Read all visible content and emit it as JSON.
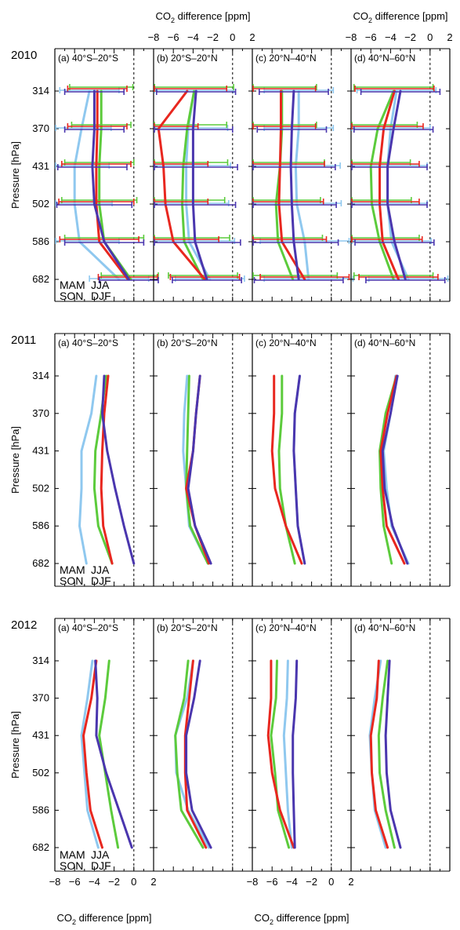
{
  "figure": {
    "top_xlabel_main": "CO",
    "top_xlabel_sub": "2",
    "top_xlabel_rest": " difference [ppm]",
    "bottom_xlabel_main": "CO",
    "bottom_xlabel_sub": "2",
    "bottom_xlabel_rest": " difference [ppm]",
    "ylabel": "Pressure [hPa]",
    "xticks": [
      "−8",
      "−6",
      "−4",
      "−2",
      "0",
      "2"
    ],
    "yticks": [
      "314",
      "370",
      "431",
      "502",
      "586",
      "682"
    ],
    "panel_titles": [
      "(a) 40°S–20°S",
      "(b) 20°S–20°N",
      "(c) 20°N–40°N",
      "(d) 40°N–60°N"
    ],
    "legend": {
      "mam": "MAM",
      "jja": "JJA",
      "son": "SON",
      "djf": "DJF"
    },
    "colors": {
      "MAM": "#5ccb3c",
      "JJA": "#e8271f",
      "SON": "#8fc8ef",
      "DJF": "#4a36ae"
    }
  },
  "chart_data": {
    "type": "line",
    "orientation": "vertical-profile",
    "xlim": [
      -8,
      2
    ],
    "x_unit": "CO2 difference [ppm]",
    "y_levels_hPa": [
      314,
      370,
      431,
      502,
      586,
      682
    ],
    "zero_line": "dashed",
    "years": [
      {
        "year": "2010",
        "error_bars": true,
        "panels": [
          {
            "title": "(a) 40°S–20°S",
            "series": [
              {
                "name": "MAM",
                "x": [
                  -3.3,
                  -3.3,
                  -3.5,
                  -3.5,
                  -3.0,
                  -0.3
                ],
                "xerr": [
                  3.2,
                  3.0,
                  3.5,
                  3.8,
                  4.0,
                  3.0
                ]
              },
              {
                "name": "JJA",
                "x": [
                  -3.7,
                  -3.7,
                  -3.8,
                  -3.8,
                  -3.5,
                  -0.6
                ],
                "xerr": [
                  3.0,
                  3.0,
                  3.5,
                  3.8,
                  4.0,
                  3.0
                ]
              },
              {
                "name": "SON",
                "x": [
                  -4.5,
                  -5.3,
                  -6.0,
                  -6.0,
                  -5.5,
                  -1.5
                ],
                "xerr": [
                  3.0,
                  3.0,
                  3.5,
                  3.8,
                  4.0,
                  3.0
                ]
              },
              {
                "name": "DJF",
                "x": [
                  -4.0,
                  -4.0,
                  -4.2,
                  -4.0,
                  -3.0,
                  -0.5
                ],
                "xerr": [
                  3.0,
                  3.0,
                  3.5,
                  3.8,
                  4.0,
                  3.0
                ]
              }
            ]
          },
          {
            "title": "(b) 20°S–20°N",
            "series": [
              {
                "name": "MAM",
                "x": [
                  -3.9,
                  -4.6,
                  -5.0,
                  -5.1,
                  -4.9,
                  -3.0
                ],
                "xerr": [
                  4.0,
                  4.0,
                  4.5,
                  4.3,
                  4.6,
                  3.5
                ]
              },
              {
                "name": "JJA",
                "x": [
                  -4.6,
                  -7.5,
                  -7.0,
                  -6.8,
                  -6.0,
                  -2.8
                ],
                "xerr": [
                  4.0,
                  4.0,
                  4.5,
                  4.3,
                  4.6,
                  3.5
                ]
              },
              {
                "name": "SON",
                "x": [
                  -3.9,
                  -4.5,
                  -4.7,
                  -4.7,
                  -4.4,
                  -2.3
                ],
                "xerr": [
                  4.0,
                  4.0,
                  4.5,
                  4.3,
                  4.6,
                  3.5
                ]
              },
              {
                "name": "DJF",
                "x": [
                  -3.7,
                  -4.0,
                  -4.0,
                  -4.0,
                  -3.8,
                  -2.6
                ],
                "xerr": [
                  4.0,
                  4.0,
                  4.5,
                  4.3,
                  4.6,
                  3.5
                ]
              }
            ]
          },
          {
            "title": "(c) 20°N–40°N",
            "series": [
              {
                "name": "MAM",
                "x": [
                  -5.0,
                  -5.0,
                  -5.2,
                  -5.6,
                  -5.4,
                  -3.9
                ],
                "xerr": [
                  3.5,
                  3.5,
                  4.5,
                  4.5,
                  4.5,
                  4.5
                ]
              },
              {
                "name": "JJA",
                "x": [
                  -5.1,
                  -5.1,
                  -5.2,
                  -5.3,
                  -5.0,
                  -2.7
                ],
                "xerr": [
                  3.5,
                  3.5,
                  4.5,
                  4.5,
                  4.5,
                  4.5
                ]
              },
              {
                "name": "SON",
                "x": [
                  -3.3,
                  -3.3,
                  -3.6,
                  -3.5,
                  -2.7,
                  -2.3
                ],
                "xerr": [
                  3.5,
                  3.5,
                  4.5,
                  4.5,
                  4.5,
                  4.5
                ]
              },
              {
                "name": "DJF",
                "x": [
                  -3.8,
                  -4.0,
                  -4.1,
                  -4.0,
                  -3.8,
                  -3.3
                ],
                "xerr": [
                  3.5,
                  3.5,
                  4.5,
                  4.5,
                  4.5,
                  4.5
                ]
              }
            ]
          },
          {
            "title": "(d) 40°N–60°N",
            "series": [
              {
                "name": "MAM",
                "x": [
                  -3.7,
                  -5.3,
                  -6.0,
                  -5.9,
                  -5.1,
                  -3.7
                ],
                "xerr": [
                  4.0,
                  4.0,
                  4.0,
                  4.0,
                  4.0,
                  4.0
                ]
              },
              {
                "name": "JJA",
                "x": [
                  -3.6,
                  -4.7,
                  -5.1,
                  -5.1,
                  -4.8,
                  -3.2
                ],
                "xerr": [
                  4.0,
                  4.0,
                  4.0,
                  4.0,
                  4.0,
                  4.0
                ]
              },
              {
                "name": "SON",
                "x": [
                  -3.4,
                  -4.0,
                  -4.3,
                  -4.3,
                  -3.9,
                  -2.2
                ],
                "xerr": [
                  4.0,
                  4.0,
                  4.0,
                  4.0,
                  4.0,
                  4.0
                ]
              },
              {
                "name": "DJF",
                "x": [
                  -3.0,
                  -3.7,
                  -4.3,
                  -4.3,
                  -3.6,
                  -2.5
                ],
                "xerr": [
                  4.0,
                  4.0,
                  4.0,
                  4.0,
                  4.0,
                  4.0
                ]
              }
            ]
          }
        ]
      },
      {
        "year": "2011",
        "error_bars": false,
        "panels": [
          {
            "title": "(a) 40°S–20°S",
            "series": [
              {
                "name": "MAM",
                "x": [
                  -2.8,
                  -3.3,
                  -3.9,
                  -4.0,
                  -3.6,
                  -2.2
                ]
              },
              {
                "name": "JJA",
                "x": [
                  -2.6,
                  -3.0,
                  -3.2,
                  -3.3,
                  -3.1,
                  -2.2
                ]
              },
              {
                "name": "SON",
                "x": [
                  -3.8,
                  -4.3,
                  -5.3,
                  -5.3,
                  -5.5,
                  -4.8
                ]
              },
              {
                "name": "DJF",
                "x": [
                  -3.0,
                  -3.2,
                  -2.7,
                  -1.9,
                  -1.0,
                  0.0
                ]
              }
            ]
          },
          {
            "title": "(b) 20°S–20°N",
            "series": [
              {
                "name": "MAM",
                "x": [
                  -4.4,
                  -4.5,
                  -4.6,
                  -4.7,
                  -4.3,
                  -2.5
                ]
              },
              {
                "name": "JJA",
                "x": [
                  -3.3,
                  -3.7,
                  -4.0,
                  -4.7,
                  -3.8,
                  -2.4
                ]
              },
              {
                "name": "SON",
                "x": [
                  -4.6,
                  -4.9,
                  -5.0,
                  -4.7,
                  -4.4,
                  -2.5
                ]
              },
              {
                "name": "DJF",
                "x": [
                  -3.3,
                  -3.7,
                  -4.0,
                  -4.5,
                  -3.8,
                  -2.2
                ]
              }
            ]
          },
          {
            "title": "(c) 20°N–40°N",
            "series": [
              {
                "name": "MAM",
                "x": [
                  -5.0,
                  -5.0,
                  -5.3,
                  -5.2,
                  -4.6,
                  -3.7
                ]
              },
              {
                "name": "JJA",
                "x": [
                  -5.8,
                  -5.8,
                  -6.0,
                  -5.7,
                  -4.6,
                  -3.0
                ]
              },
              {
                "name": "SON",
                "x": [
                  -3.2,
                  -3.7,
                  -3.8,
                  -3.6,
                  -3.4,
                  -2.7
                ]
              },
              {
                "name": "DJF",
                "x": [
                  -3.2,
                  -3.7,
                  -3.8,
                  -3.6,
                  -3.4,
                  -2.7
                ]
              }
            ]
          },
          {
            "title": "(d) 40°N–60°N",
            "series": [
              {
                "name": "MAM",
                "x": [
                  -3.4,
                  -4.5,
                  -5.1,
                  -5.0,
                  -4.7,
                  -3.9
                ]
              },
              {
                "name": "JJA",
                "x": [
                  -3.4,
                  -4.3,
                  -5.0,
                  -4.8,
                  -4.4,
                  -2.6
                ]
              },
              {
                "name": "SON",
                "x": [
                  -3.5,
                  -4.0,
                  -4.7,
                  -4.4,
                  -3.9,
                  -2.2
                ]
              },
              {
                "name": "DJF",
                "x": [
                  -3.3,
                  -4.0,
                  -4.8,
                  -4.6,
                  -3.8,
                  -2.3
                ]
              }
            ]
          }
        ]
      },
      {
        "year": "2012",
        "error_bars": false,
        "panels": [
          {
            "title": "(a) 40°S–20°S",
            "series": [
              {
                "name": "MAM",
                "x": [
                  -2.5,
                  -2.9,
                  -3.5,
                  -2.9,
                  -2.3,
                  -1.6
                ]
              },
              {
                "name": "JJA",
                "x": [
                  -3.8,
                  -4.3,
                  -5.1,
                  -4.8,
                  -4.4,
                  -3.2
                ]
              },
              {
                "name": "SON",
                "x": [
                  -4.2,
                  -4.7,
                  -5.3,
                  -5.0,
                  -4.7,
                  -3.6
                ]
              },
              {
                "name": "DJF",
                "x": [
                  -3.9,
                  -3.7,
                  -3.8,
                  -2.8,
                  -1.5,
                  -0.2
                ]
              }
            ]
          },
          {
            "title": "(b) 20°S–20°N",
            "series": [
              {
                "name": "MAM",
                "x": [
                  -4.5,
                  -4.9,
                  -5.8,
                  -5.6,
                  -5.2,
                  -3.0
                ]
              },
              {
                "name": "JJA",
                "x": [
                  -4.0,
                  -4.4,
                  -4.8,
                  -4.8,
                  -4.6,
                  -2.7
                ]
              },
              {
                "name": "SON",
                "x": [
                  -4.0,
                  -4.6,
                  -5.8,
                  -5.7,
                  -4.5,
                  -2.4
                ]
              },
              {
                "name": "DJF",
                "x": [
                  -3.3,
                  -3.9,
                  -4.7,
                  -4.7,
                  -4.1,
                  -2.2
                ]
              }
            ]
          },
          {
            "title": "(c) 20°N–40°N",
            "series": [
              {
                "name": "MAM",
                "x": [
                  -5.5,
                  -5.6,
                  -6.1,
                  -5.7,
                  -5.4,
                  -4.3
                ]
              },
              {
                "name": "JJA",
                "x": [
                  -6.1,
                  -6.1,
                  -6.4,
                  -6.0,
                  -5.2,
                  -3.8
                ]
              },
              {
                "name": "SON",
                "x": [
                  -4.4,
                  -4.5,
                  -4.8,
                  -4.6,
                  -4.4,
                  -4.0
                ]
              },
              {
                "name": "DJF",
                "x": [
                  -3.5,
                  -3.6,
                  -3.9,
                  -3.9,
                  -3.8,
                  -3.7
                ]
              }
            ]
          },
          {
            "title": "(d) 40°N–60°N",
            "series": [
              {
                "name": "MAM",
                "x": [
                  -4.3,
                  -4.8,
                  -5.2,
                  -5.1,
                  -4.5,
                  -3.6
                ]
              },
              {
                "name": "JJA",
                "x": [
                  -5.2,
                  -5.4,
                  -6.0,
                  -5.9,
                  -5.5,
                  -4.3
                ]
              },
              {
                "name": "SON",
                "x": [
                  -5.0,
                  -5.6,
                  -6.1,
                  -5.9,
                  -5.6,
                  -4.5
                ]
              },
              {
                "name": "DJF",
                "x": [
                  -4.1,
                  -4.3,
                  -4.5,
                  -4.4,
                  -4.0,
                  -3.0
                ]
              }
            ]
          }
        ]
      }
    ]
  }
}
